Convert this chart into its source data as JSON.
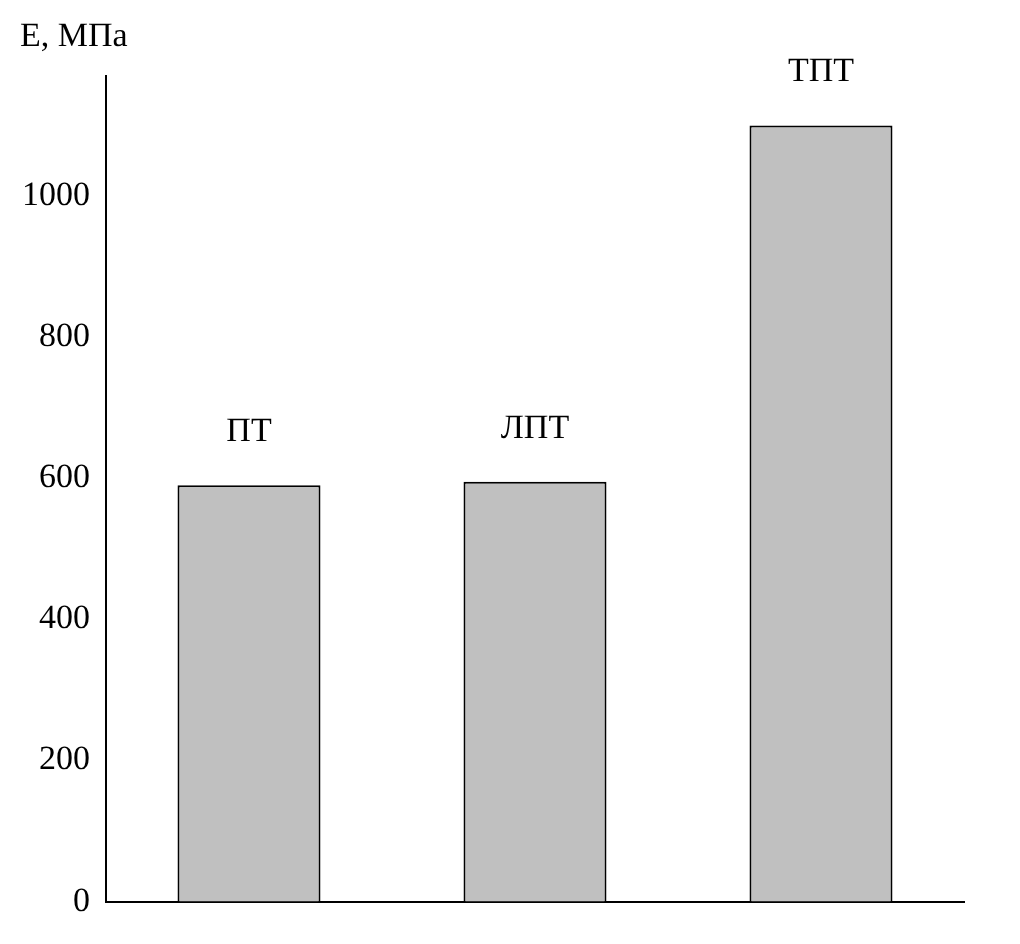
{
  "chart_data": {
    "type": "bar",
    "ylabel": "E, МПа",
    "categories": [
      "ПТ",
      "ЛПТ",
      "ТПТ"
    ],
    "values": [
      590,
      595,
      1100
    ],
    "color": "#c0c0c0",
    "ylim": [
      0,
      1170
    ],
    "yticks": [
      0,
      200,
      400,
      600,
      800,
      1000
    ],
    "grid": false,
    "legend": false
  }
}
